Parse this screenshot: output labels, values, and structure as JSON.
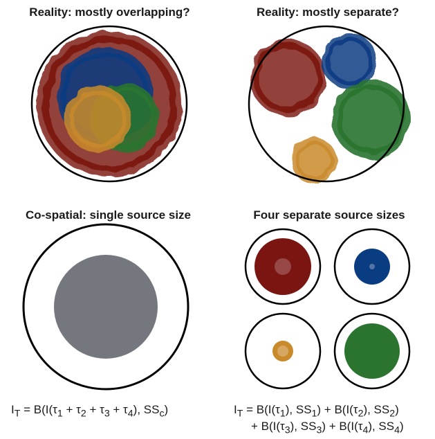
{
  "panels": {
    "top_left": {
      "title": "Reality: mostly overlapping?"
    },
    "top_right": {
      "title": "Reality: mostly separate?"
    },
    "bottom_left": {
      "title": "Co-spatial: single source size"
    },
    "bottom_right": {
      "title": "Four separate source sizes"
    }
  },
  "colors": {
    "red": "#7a1512",
    "blue": "#0a3c82",
    "green": "#2a7430",
    "orange": "#c98a2c",
    "gray": "#74777d",
    "outline": "#000000"
  },
  "equations": {
    "single": "I<sub>T</sub> = B(I(τ<sub>1</sub> + τ<sub>2</sub> + τ<sub>3</sub> + τ<sub>4</sub>), SS<sub>c</sub>)",
    "separate_line1": "I<sub>T</sub> = B(I(τ<sub>1</sub>), SS<sub>1</sub>) + B(I(τ<sub>2</sub>), SS<sub>2</sub>)",
    "separate_line2": "+ B(I(τ<sub>3</sub>), SS<sub>3</sub>) + B(I(τ<sub>4</sub>), SS<sub>4</sub>)"
  }
}
